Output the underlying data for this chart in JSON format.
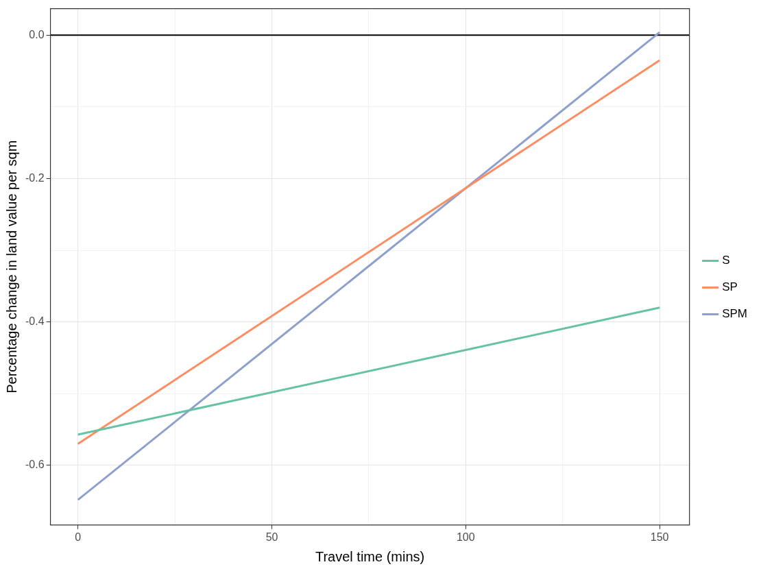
{
  "chart_data": {
    "type": "line",
    "xlabel": "Travel time (mins)",
    "ylabel": "Percentage change in land value per sqm",
    "xlim": [
      -7.1,
      157.7
    ],
    "ylim": [
      -0.683,
      0.037
    ],
    "xticks": [
      0,
      {
        "value": 25,
        "label": null
      },
      50,
      {
        "value": 75,
        "label": null
      },
      100,
      {
        "value": 125,
        "label": null
      },
      150
    ],
    "yticks": [
      -0.6,
      {
        "value": -0.5,
        "label": null
      },
      -0.4,
      {
        "value": -0.3,
        "label": null
      },
      -0.2,
      {
        "value": -0.1,
        "label": null
      },
      {
        "value": 0,
        "label": "0.0"
      }
    ],
    "grid": true,
    "legend": "right",
    "marker": "none",
    "line_style": "solid",
    "ref_lines": [
      {
        "axis": "y",
        "value": 0,
        "color": "#000000"
      }
    ],
    "x": [
      0,
      150
    ],
    "series": [
      {
        "name": "S",
        "color": "#66c2a5",
        "values": [
          -0.557,
          -0.38
        ]
      },
      {
        "name": "SP",
        "color": "#fc8d62",
        "values": [
          -0.57,
          -0.035
        ]
      },
      {
        "name": "SPM",
        "color": "#8da0cb",
        "values": [
          -0.648,
          0.004
        ]
      }
    ]
  }
}
